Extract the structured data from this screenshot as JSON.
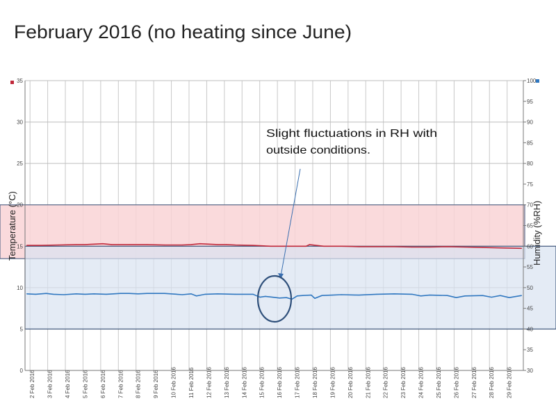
{
  "chart_data": {
    "type": "line",
    "title": "February 2016 (no heating since June)",
    "ylabel_left": "Temperature (°C)",
    "ylabel_right": "Humidity (%RH)",
    "ylim_left": [
      0,
      35
    ],
    "ylim_right": [
      30,
      100
    ],
    "yticks_left": [
      "0",
      "5",
      "10",
      "15",
      "20",
      "25",
      "30",
      "35"
    ],
    "yticks_right": [
      "30",
      "35",
      "40",
      "45",
      "50",
      "55",
      "60",
      "65",
      "70",
      "75",
      "80",
      "85",
      "90",
      "95",
      "100"
    ],
    "xticks": [
      "2 Feb 2016",
      "3 Feb 2016",
      "4 Feb 2016",
      "5 Feb 2016",
      "6 Feb 2016",
      "7 Feb 2016",
      "8 Feb 2016",
      "9 Feb 2016",
      "10 Feb 2016",
      "11 Feb 2016",
      "12 Feb 2016",
      "13 Feb 2016",
      "14 Feb 2016",
      "15 Feb 2016",
      "16 Feb 2016",
      "17 Feb 2016",
      "18 Feb 2016",
      "19 Feb 2016",
      "20 Feb 2016",
      "21 Feb 2016",
      "22 Feb 2016",
      "23 Feb 2016",
      "24 Feb 2016",
      "25 Feb 2016",
      "26 Feb 2016",
      "27 Feb 2016",
      "28 Feb 2016",
      "29 Feb 2016"
    ],
    "xlim_days": [
      1.6,
      29.8
    ],
    "grid": true,
    "bands": [
      {
        "name": "temperature-target-band",
        "axis": "left",
        "range": [
          13.5,
          20
        ],
        "color": "#f9d3d6"
      },
      {
        "name": "humidity-target-band",
        "axis": "right",
        "range": [
          40,
          60
        ],
        "color": "#d9e3f1"
      }
    ],
    "series": [
      {
        "name": "Temperature",
        "axis": "left",
        "color": "#c0283a",
        "x": [
          1.7,
          2.5,
          3.5,
          4.5,
          5.0,
          5.5,
          6.0,
          6.5,
          7.5,
          8.5,
          9.5,
          10.5,
          11.0,
          11.5,
          12.5,
          13.0,
          13.5,
          14.5,
          15.5,
          16.5,
          17.0,
          17.5,
          17.7,
          18.5,
          19.5,
          20.5,
          21.5,
          22.5,
          23.5,
          24.5,
          25.5,
          26.5,
          27.5,
          28.5,
          29.7
        ],
        "values": [
          15.1,
          15.1,
          15.15,
          15.2,
          15.2,
          15.25,
          15.3,
          15.2,
          15.2,
          15.2,
          15.15,
          15.15,
          15.2,
          15.3,
          15.2,
          15.2,
          15.15,
          15.1,
          15.0,
          15.0,
          15.0,
          15.0,
          15.2,
          15.0,
          15.0,
          14.95,
          14.95,
          14.95,
          14.9,
          14.9,
          14.95,
          14.9,
          14.85,
          14.8,
          14.75
        ]
      },
      {
        "name": "Humidity",
        "axis": "right",
        "color": "#2f77c0",
        "x": [
          1.7,
          2.2,
          2.8,
          3.2,
          3.8,
          4.5,
          5.0,
          5.5,
          6.2,
          7.0,
          7.5,
          8.0,
          8.5,
          9.5,
          10.5,
          11.0,
          11.3,
          11.8,
          12.5,
          13.5,
          14.5,
          14.9,
          15.2,
          15.6,
          16.0,
          16.4,
          16.7,
          17.0,
          17.3,
          17.8,
          18.0,
          18.4,
          19.0,
          19.5,
          20.5,
          21.5,
          22.5,
          23.5,
          24.0,
          24.5,
          25.5,
          26.0,
          26.5,
          27.5,
          28.0,
          28.5,
          29.0,
          29.7
        ],
        "values": [
          48.5,
          48.4,
          48.6,
          48.4,
          48.3,
          48.5,
          48.4,
          48.5,
          48.4,
          48.6,
          48.6,
          48.5,
          48.6,
          48.6,
          48.3,
          48.5,
          48.0,
          48.4,
          48.5,
          48.4,
          48.4,
          47.7,
          47.9,
          47.7,
          47.5,
          47.6,
          47.2,
          48.0,
          48.1,
          48.2,
          47.4,
          48.1,
          48.2,
          48.3,
          48.2,
          48.4,
          48.5,
          48.4,
          48.0,
          48.2,
          48.1,
          47.6,
          48.0,
          48.1,
          47.7,
          48.1,
          47.6,
          48.1
        ]
      }
    ],
    "annotations": [
      {
        "text_lines": [
          "Slight fluctuations in RH with",
          "outside conditions."
        ],
        "target_day": 16.2,
        "target_rh": 47.5
      }
    ]
  }
}
